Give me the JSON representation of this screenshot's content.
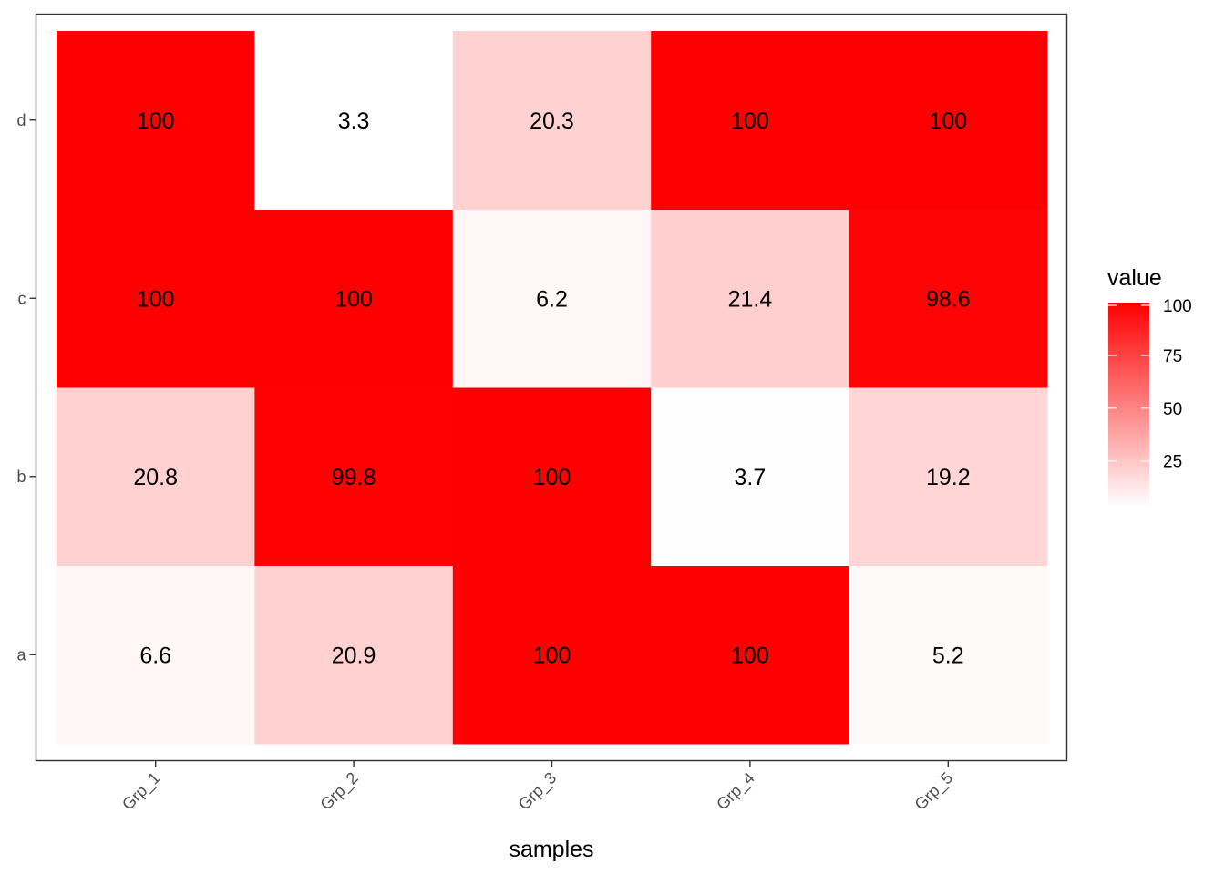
{
  "chart_data": {
    "type": "heatmap",
    "x_categories": [
      "Grp_1",
      "Grp_2",
      "Grp_3",
      "Grp_4",
      "Grp_5"
    ],
    "y_categories": [
      "a",
      "b",
      "c",
      "d"
    ],
    "values": [
      [
        6.6,
        20.9,
        100,
        100,
        5.2
      ],
      [
        20.8,
        99.8,
        100,
        3.7,
        19.2
      ],
      [
        100,
        100,
        6.2,
        21.4,
        98.6
      ],
      [
        100,
        3.3,
        20.3,
        100,
        100
      ]
    ],
    "labels": [
      [
        "6.6",
        "20.9",
        "100",
        "100",
        "5.2"
      ],
      [
        "20.8",
        "99.8",
        "100",
        "3.7",
        "19.2"
      ],
      [
        "100",
        "100",
        "6.2",
        "21.4",
        "98.6"
      ],
      [
        "100",
        "3.3",
        "20.3",
        "100",
        "100"
      ]
    ],
    "xlabel": "samples",
    "ylabel": "",
    "legend": {
      "title": "value",
      "ticks": [
        25,
        50,
        75,
        100
      ],
      "tick_labels": [
        "25",
        "50",
        "75",
        "100"
      ],
      "position": "right"
    },
    "color_scale": {
      "low": "#ffffff",
      "high": "#ff0000",
      "min": 3.3,
      "max": 100
    }
  }
}
